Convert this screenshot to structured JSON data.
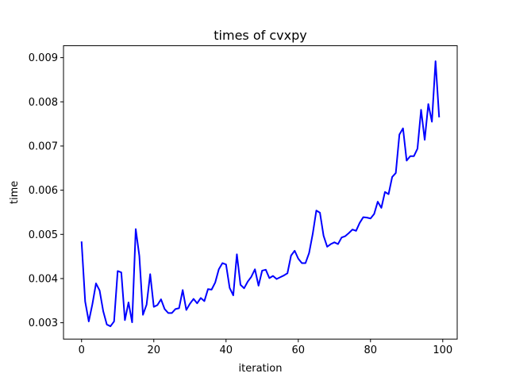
{
  "chart_data": {
    "type": "line",
    "title": "times of cvxpy",
    "xlabel": "iteration",
    "ylabel": "time",
    "xlim": [
      -5,
      104
    ],
    "ylim": [
      0.00263,
      0.00927
    ],
    "xticks": [
      0,
      20,
      40,
      60,
      80,
      100
    ],
    "yticks": [
      0.003,
      0.004,
      0.005,
      0.006,
      0.007,
      0.008,
      0.009
    ],
    "xtick_labels": [
      "0",
      "20",
      "40",
      "60",
      "80",
      "100"
    ],
    "ytick_labels": [
      "0.003",
      "0.004",
      "0.005",
      "0.006",
      "0.007",
      "0.008",
      "0.009"
    ],
    "grid": false,
    "series": [
      {
        "color": "#0000ff",
        "x": [
          0,
          1,
          2,
          3,
          4,
          5,
          6,
          7,
          8,
          9,
          10,
          11,
          12,
          13,
          14,
          15,
          16,
          17,
          18,
          19,
          20,
          21,
          22,
          23,
          24,
          25,
          26,
          27,
          28,
          29,
          30,
          31,
          32,
          33,
          34,
          35,
          36,
          37,
          38,
          39,
          40,
          41,
          42,
          43,
          44,
          45,
          46,
          47,
          48,
          49,
          50,
          51,
          52,
          53,
          54,
          55,
          56,
          57,
          58,
          59,
          60,
          61,
          62,
          63,
          64,
          65,
          66,
          67,
          68,
          69,
          70,
          71,
          72,
          73,
          74,
          75,
          76,
          77,
          78,
          79,
          80,
          81,
          82,
          83,
          84,
          85,
          86,
          87,
          88,
          89,
          90,
          91,
          92,
          93,
          94,
          95,
          96,
          97,
          98,
          99
        ],
        "y": [
          0.00484,
          0.00348,
          0.00303,
          0.00342,
          0.00389,
          0.00373,
          0.00326,
          0.00296,
          0.00292,
          0.00303,
          0.00417,
          0.00414,
          0.00306,
          0.00346,
          0.00301,
          0.00512,
          0.00451,
          0.00318,
          0.00341,
          0.0041,
          0.00336,
          0.0034,
          0.00353,
          0.00331,
          0.00322,
          0.00322,
          0.00331,
          0.00333,
          0.00374,
          0.00329,
          0.00343,
          0.00354,
          0.00344,
          0.00356,
          0.00349,
          0.00376,
          0.00375,
          0.00391,
          0.00421,
          0.00435,
          0.00432,
          0.00379,
          0.00362,
          0.00455,
          0.00386,
          0.00378,
          0.00393,
          0.00404,
          0.00421,
          0.00384,
          0.00418,
          0.0042,
          0.00401,
          0.00406,
          0.00399,
          0.00403,
          0.00407,
          0.00412,
          0.00452,
          0.00463,
          0.00445,
          0.00435,
          0.00435,
          0.00458,
          0.00501,
          0.00554,
          0.00549,
          0.00497,
          0.00472,
          0.00478,
          0.00482,
          0.00478,
          0.00493,
          0.00496,
          0.00503,
          0.00511,
          0.00508,
          0.00526,
          0.00539,
          0.00538,
          0.00536,
          0.00546,
          0.00574,
          0.0056,
          0.00596,
          0.00591,
          0.0063,
          0.00639,
          0.00726,
          0.0074,
          0.00667,
          0.00677,
          0.00677,
          0.00694,
          0.00782,
          0.00714,
          0.00795,
          0.00755,
          0.00892,
          0.00765
        ]
      }
    ]
  }
}
